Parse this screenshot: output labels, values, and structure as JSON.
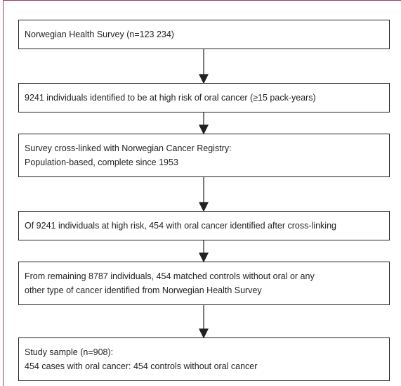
{
  "nodes": [
    {
      "lines": [
        "Norwegian Health Survey (n=123 234)"
      ]
    },
    {
      "lines": [
        "9241 individuals identified to be at high risk of oral cancer (≥15 pack-years)"
      ]
    },
    {
      "lines": [
        "Survey cross-linked with Norwegian Cancer Registry:",
        "Population-based, complete since 1953"
      ]
    },
    {
      "lines": [
        "Of 9241 individuals at high risk, 454 with oral cancer identified after cross-linking"
      ]
    },
    {
      "lines": [
        "From remaining 8787 individuals, 454 matched controls without oral or any",
        "other type of cancer identified from Norwegian Health Survey"
      ]
    },
    {
      "lines": [
        "Study sample (n=908):",
        "454 cases with oral cancer: 454 controls without oral cancer"
      ]
    }
  ]
}
